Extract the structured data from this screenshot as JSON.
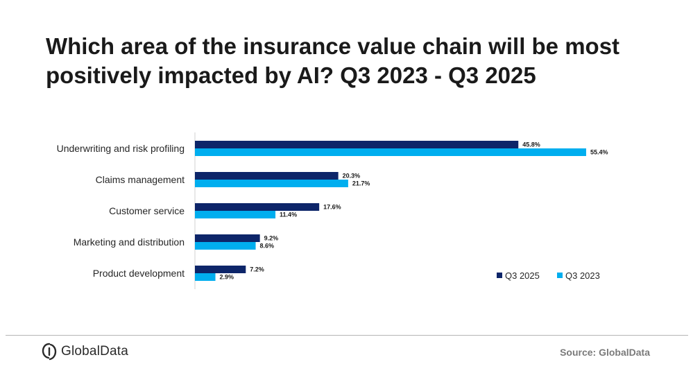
{
  "chart_data": {
    "type": "bar",
    "orientation": "horizontal",
    "title": "Which area of the insurance value chain will be most positively impacted by AI? Q3 2023 - Q3 2025",
    "categories": [
      "Underwriting and risk profiling",
      "Claims management",
      "Customer service",
      "Marketing and distribution",
      "Product development"
    ],
    "series": [
      {
        "name": "Q3 2025",
        "color": "#0d2569",
        "values": [
          45.8,
          20.3,
          17.6,
          9.2,
          7.2
        ],
        "labels": [
          "45.8%",
          "20.3%",
          "17.6%",
          "9.2%",
          "7.2%"
        ]
      },
      {
        "name": "Q3 2023",
        "color": "#00aeef",
        "values": [
          55.4,
          21.7,
          11.4,
          8.6,
          2.9
        ],
        "labels": [
          "55.4%",
          "21.7%",
          "11.4%",
          "8.6%",
          "2.9%"
        ]
      }
    ],
    "legend_order": [
      "Q3 2025",
      "Q3 2023"
    ],
    "legend_position": "bottom-right",
    "xlim": [
      0,
      60
    ],
    "grid": false
  },
  "brand": {
    "name": "GlobalData"
  },
  "source": "Source: GlobalData"
}
